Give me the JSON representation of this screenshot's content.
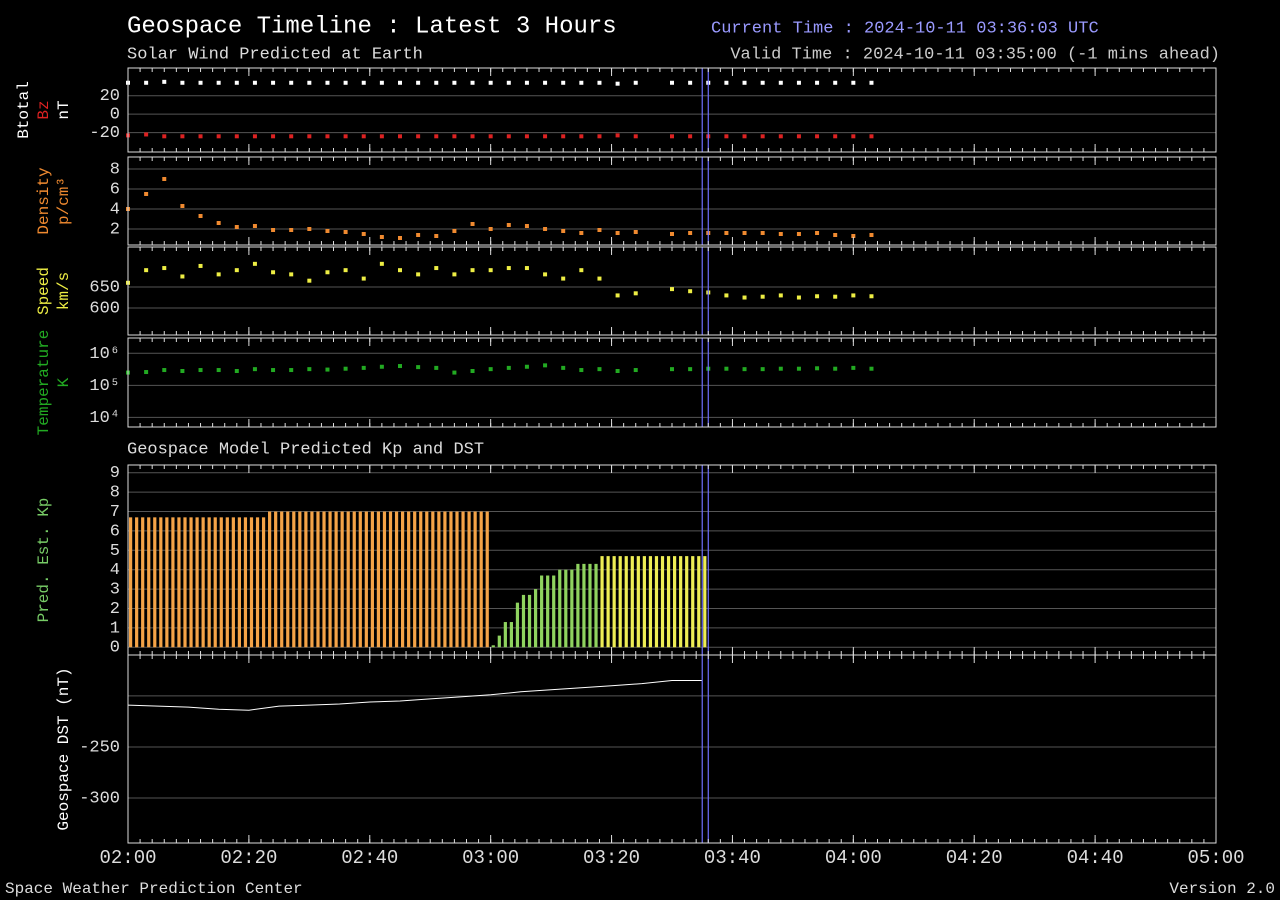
{
  "header": {
    "title": "Geospace Timeline : Latest 3 Hours",
    "subtitle": "Solar Wind Predicted at Earth",
    "current_time": "Current Time : 2024-10-11 03:36:03 UTC",
    "valid_time": "Valid Time : 2024-10-11 03:35:00 (-1 mins ahead)"
  },
  "section_title": "Geospace Model Predicted Kp and DST",
  "footer": {
    "left": "Space Weather Prediction Center",
    "right": "Version 2.0"
  },
  "time_markers": [
    "03:35",
    "03:36"
  ],
  "chart_data": [
    {
      "type": "scatter",
      "ylabels": [
        {
          "text": "Btotal",
          "color": "#ffffff"
        },
        {
          "text": "Bz",
          "color": "#dd2222"
        },
        {
          "text": "nT",
          "color": "#ffffff"
        }
      ],
      "xlim": [
        "02:00",
        "05:00"
      ],
      "xticks": [
        "02:00",
        "02:20",
        "02:40",
        "03:00",
        "03:20",
        "03:40",
        "04:00",
        "04:20",
        "04:40",
        "05:00"
      ],
      "minor_tick_minutes": 2,
      "ylim": [
        -41,
        50
      ],
      "yticks": [
        20,
        0,
        -20
      ],
      "grid": true,
      "x": [
        "02:00",
        "02:03",
        "02:06",
        "02:09",
        "02:12",
        "02:15",
        "02:18",
        "02:21",
        "02:24",
        "02:27",
        "02:30",
        "02:33",
        "02:36",
        "02:39",
        "02:42",
        "02:45",
        "02:48",
        "02:51",
        "02:54",
        "02:57",
        "03:00",
        "03:03",
        "03:06",
        "03:09",
        "03:12",
        "03:15",
        "03:18",
        "03:21",
        "03:24",
        "03:27",
        "03:30",
        "03:33",
        "03:36",
        "03:39",
        "03:42",
        "03:45",
        "03:48",
        "03:51",
        "03:54",
        "03:57",
        "04:00",
        "04:03"
      ],
      "series": [
        {
          "color": "#ffffff",
          "values": [
            34,
            34,
            35,
            34,
            34,
            34,
            34,
            34,
            34,
            34,
            34,
            34,
            34,
            34,
            34,
            34,
            34,
            34,
            34,
            34,
            34,
            34,
            34,
            34,
            34,
            34,
            34,
            33,
            34,
            null,
            34,
            34,
            34,
            34,
            34,
            34,
            34,
            34,
            34,
            34,
            34,
            34
          ]
        },
        {
          "color": "#dd2222",
          "values": [
            -23,
            -22,
            -24,
            -24,
            -24,
            -24,
            -24,
            -24,
            -24,
            -24,
            -24,
            -24,
            -24,
            -24,
            -24,
            -24,
            -24,
            -24,
            -24,
            -24,
            -24,
            -24,
            -24,
            -24,
            -24,
            -24,
            -24,
            -23,
            -24,
            null,
            -24,
            -24,
            -24,
            -24,
            -24,
            -24,
            -24,
            -24,
            -24,
            -24,
            -24,
            -24
          ]
        }
      ]
    },
    {
      "type": "scatter",
      "ylabels": [
        {
          "text": "Density",
          "color": "#f08a30"
        },
        {
          "text": "p/cm³",
          "color": "#f08a30"
        }
      ],
      "xlim": [
        "02:00",
        "05:00"
      ],
      "xticks": [
        "02:00",
        "02:20",
        "02:40",
        "03:00",
        "03:20",
        "03:40",
        "04:00",
        "04:20",
        "04:40",
        "05:00"
      ],
      "minor_tick_minutes": 2,
      "ylim": [
        0.4,
        9.2
      ],
      "yticks": [
        8,
        6,
        4,
        2
      ],
      "grid": true,
      "x": [
        "02:00",
        "02:03",
        "02:06",
        "02:09",
        "02:12",
        "02:15",
        "02:18",
        "02:21",
        "02:24",
        "02:27",
        "02:30",
        "02:33",
        "02:36",
        "02:39",
        "02:42",
        "02:45",
        "02:48",
        "02:51",
        "02:54",
        "02:57",
        "03:00",
        "03:03",
        "03:06",
        "03:09",
        "03:12",
        "03:15",
        "03:18",
        "03:21",
        "03:24",
        "03:27",
        "03:30",
        "03:33",
        "03:36",
        "03:39",
        "03:42",
        "03:45",
        "03:48",
        "03:51",
        "03:54",
        "03:57",
        "04:00",
        "04:03"
      ],
      "series": [
        {
          "color": "#f08a30",
          "values": [
            4.0,
            5.5,
            7.0,
            4.3,
            3.3,
            2.6,
            2.2,
            2.3,
            1.9,
            1.9,
            2.0,
            1.8,
            1.7,
            1.5,
            1.2,
            1.1,
            1.4,
            1.3,
            1.8,
            2.5,
            2.0,
            2.4,
            2.3,
            2.0,
            1.8,
            1.6,
            1.9,
            1.6,
            1.7,
            null,
            1.5,
            1.6,
            1.6,
            1.6,
            1.6,
            1.6,
            1.5,
            1.5,
            1.6,
            1.4,
            1.3,
            1.4
          ]
        }
      ]
    },
    {
      "type": "scatter",
      "ylabels": [
        {
          "text": "Speed",
          "color": "#eeee44"
        },
        {
          "text": "km/s",
          "color": "#eeee44"
        }
      ],
      "xlim": [
        "02:00",
        "05:00"
      ],
      "xticks": [
        "02:00",
        "02:20",
        "02:40",
        "03:00",
        "03:20",
        "03:40",
        "04:00",
        "04:20",
        "04:40",
        "05:00"
      ],
      "minor_tick_minutes": 2,
      "ylim": [
        536,
        745
      ],
      "yticks": [
        650,
        600
      ],
      "grid": true,
      "x": [
        "02:00",
        "02:03",
        "02:06",
        "02:09",
        "02:12",
        "02:15",
        "02:18",
        "02:21",
        "02:24",
        "02:27",
        "02:30",
        "02:33",
        "02:36",
        "02:39",
        "02:42",
        "02:45",
        "02:48",
        "02:51",
        "02:54",
        "02:57",
        "03:00",
        "03:03",
        "03:06",
        "03:09",
        "03:12",
        "03:15",
        "03:18",
        "03:21",
        "03:24",
        "03:27",
        "03:30",
        "03:33",
        "03:36",
        "03:39",
        "03:42",
        "03:45",
        "03:48",
        "03:51",
        "03:54",
        "03:57",
        "04:00",
        "04:03"
      ],
      "series": [
        {
          "color": "#eeee44",
          "values": [
            660,
            690,
            695,
            675,
            700,
            680,
            690,
            705,
            685,
            680,
            665,
            685,
            690,
            670,
            705,
            690,
            680,
            695,
            680,
            690,
            690,
            695,
            695,
            680,
            670,
            690,
            670,
            630,
            635,
            null,
            645,
            640,
            637,
            630,
            625,
            627,
            630,
            625,
            628,
            627,
            630,
            628
          ]
        }
      ]
    },
    {
      "type": "scatter",
      "log": true,
      "ylabels": [
        {
          "text": "Temperature",
          "color": "#22aa22"
        },
        {
          "text": "K",
          "color": "#22aa22"
        }
      ],
      "xlim": [
        "02:00",
        "05:00"
      ],
      "xticks": [
        "02:00",
        "02:20",
        "02:40",
        "03:00",
        "03:20",
        "03:40",
        "04:00",
        "04:20",
        "04:40",
        "05:00"
      ],
      "minor_tick_minutes": 2,
      "ylim": [
        5000,
        3000000
      ],
      "yticks": [
        {
          "value": 1000000,
          "label": "10⁶"
        },
        {
          "value": 100000,
          "label": "10⁵"
        },
        {
          "value": 10000,
          "label": "10⁴"
        }
      ],
      "grid": true,
      "x": [
        "02:00",
        "02:03",
        "02:06",
        "02:09",
        "02:12",
        "02:15",
        "02:18",
        "02:21",
        "02:24",
        "02:27",
        "02:30",
        "02:33",
        "02:36",
        "02:39",
        "02:42",
        "02:45",
        "02:48",
        "02:51",
        "02:54",
        "02:57",
        "03:00",
        "03:03",
        "03:06",
        "03:09",
        "03:12",
        "03:15",
        "03:18",
        "03:21",
        "03:24",
        "03:27",
        "03:30",
        "03:33",
        "03:36",
        "03:39",
        "03:42",
        "03:45",
        "03:48",
        "03:51",
        "03:54",
        "03:57",
        "04:00",
        "04:03"
      ],
      "series": [
        {
          "color": "#22aa22",
          "values": [
            250000,
            260000,
            300000,
            280000,
            300000,
            300000,
            280000,
            320000,
            300000,
            300000,
            320000,
            310000,
            330000,
            350000,
            380000,
            400000,
            370000,
            350000,
            250000,
            280000,
            320000,
            350000,
            380000,
            420000,
            350000,
            300000,
            320000,
            280000,
            300000,
            null,
            320000,
            320000,
            330000,
            330000,
            320000,
            320000,
            330000,
            330000,
            340000,
            330000,
            350000,
            330000
          ]
        }
      ]
    },
    {
      "type": "bar",
      "ylabels": [
        {
          "text": "Pred. Est. Kp",
          "color": "#77cc66"
        }
      ],
      "xlim": [
        "02:00",
        "05:00"
      ],
      "xticks": [
        "02:00",
        "02:20",
        "02:40",
        "03:00",
        "03:20",
        "03:40",
        "04:00",
        "04:20",
        "04:40",
        "05:00"
      ],
      "minor_tick_minutes": 2,
      "ylim": [
        -0.4,
        9.4
      ],
      "yticks": [
        9,
        8,
        7,
        6,
        5,
        4,
        3,
        2,
        1,
        0
      ],
      "grid": true,
      "color_scale": [
        {
          "min": 0,
          "color": "#8fd35f"
        },
        {
          "min": 4.5,
          "color": "#eeee55"
        },
        {
          "min": 6,
          "color": "#f4a347"
        }
      ],
      "x": [
        "02:00",
        "02:01",
        "02:02",
        "02:03",
        "02:04",
        "02:05",
        "02:06",
        "02:07",
        "02:08",
        "02:09",
        "02:10",
        "02:11",
        "02:12",
        "02:13",
        "02:14",
        "02:15",
        "02:16",
        "02:17",
        "02:18",
        "02:19",
        "02:20",
        "02:21",
        "02:22",
        "02:23",
        "02:24",
        "02:25",
        "02:26",
        "02:27",
        "02:28",
        "02:29",
        "02:30",
        "02:31",
        "02:32",
        "02:33",
        "02:34",
        "02:35",
        "02:36",
        "02:37",
        "02:38",
        "02:39",
        "02:40",
        "02:41",
        "02:42",
        "02:43",
        "02:44",
        "02:45",
        "02:46",
        "02:47",
        "02:48",
        "02:49",
        "02:50",
        "02:51",
        "02:52",
        "02:53",
        "02:54",
        "02:55",
        "02:56",
        "02:57",
        "02:58",
        "02:59",
        "03:00",
        "03:01",
        "03:02",
        "03:03",
        "03:04",
        "03:05",
        "03:06",
        "03:07",
        "03:08",
        "03:09",
        "03:10",
        "03:11",
        "03:12",
        "03:13",
        "03:14",
        "03:15",
        "03:16",
        "03:17",
        "03:18",
        "03:19",
        "03:20",
        "03:21",
        "03:22",
        "03:23",
        "03:24",
        "03:25",
        "03:26",
        "03:27",
        "03:28",
        "03:29",
        "03:30",
        "03:31",
        "03:32",
        "03:33",
        "03:34",
        "03:35"
      ],
      "values": [
        6.7,
        6.7,
        6.7,
        6.7,
        6.7,
        6.7,
        6.7,
        6.7,
        6.7,
        6.7,
        6.7,
        6.7,
        6.7,
        6.7,
        6.7,
        6.7,
        6.7,
        6.7,
        6.7,
        6.7,
        6.7,
        6.7,
        6.7,
        7.0,
        7.0,
        7.0,
        7.0,
        7.0,
        7.0,
        7.0,
        7.0,
        7.0,
        7.0,
        7.0,
        7.0,
        7.0,
        7.0,
        7.0,
        7.0,
        7.0,
        7.0,
        7.0,
        7.0,
        7.0,
        7.0,
        7.0,
        7.0,
        7.0,
        7.0,
        7.0,
        7.0,
        7.0,
        7.0,
        7.0,
        7.0,
        7.0,
        7.0,
        7.0,
        7.0,
        7.0,
        0.1,
        0.6,
        1.3,
        1.3,
        2.3,
        2.7,
        2.7,
        3.0,
        3.7,
        3.7,
        3.7,
        4.0,
        4.0,
        4.0,
        4.3,
        4.3,
        4.3,
        4.3,
        4.7,
        4.7,
        4.7,
        4.7,
        4.7,
        4.7,
        4.7,
        4.7,
        4.7,
        4.7,
        4.7,
        4.7,
        4.7,
        4.7,
        4.7,
        4.7,
        4.7,
        4.7
      ]
    },
    {
      "type": "line",
      "ylabels": [
        {
          "text": "Geospace DST (nT)",
          "color": "#ffffff"
        }
      ],
      "xlim": [
        "02:00",
        "05:00"
      ],
      "xticks": [
        "02:00",
        "02:20",
        "02:40",
        "03:00",
        "03:20",
        "03:40",
        "04:00",
        "04:20",
        "04:40",
        "05:00"
      ],
      "minor_tick_minutes": 2,
      "xtick_labels": true,
      "ylim": [
        -344,
        -160
      ],
      "yticks": [
        {
          "value": -200,
          "label": null
        },
        -250,
        -300
      ],
      "grid": true,
      "color": "#ffffff",
      "x": [
        "02:00",
        "02:05",
        "02:10",
        "02:15",
        "02:20",
        "02:25",
        "02:30",
        "02:35",
        "02:40",
        "02:45",
        "02:50",
        "02:55",
        "03:00",
        "03:05",
        "03:10",
        "03:15",
        "03:20",
        "03:25",
        "03:30",
        "03:35"
      ],
      "values": [
        -209,
        -210,
        -211,
        -213,
        -214,
        -210,
        -209,
        -208,
        -206,
        -205,
        -203,
        -201,
        -199,
        -196,
        -194,
        -192,
        -190,
        -188,
        -185,
        -185
      ]
    }
  ]
}
